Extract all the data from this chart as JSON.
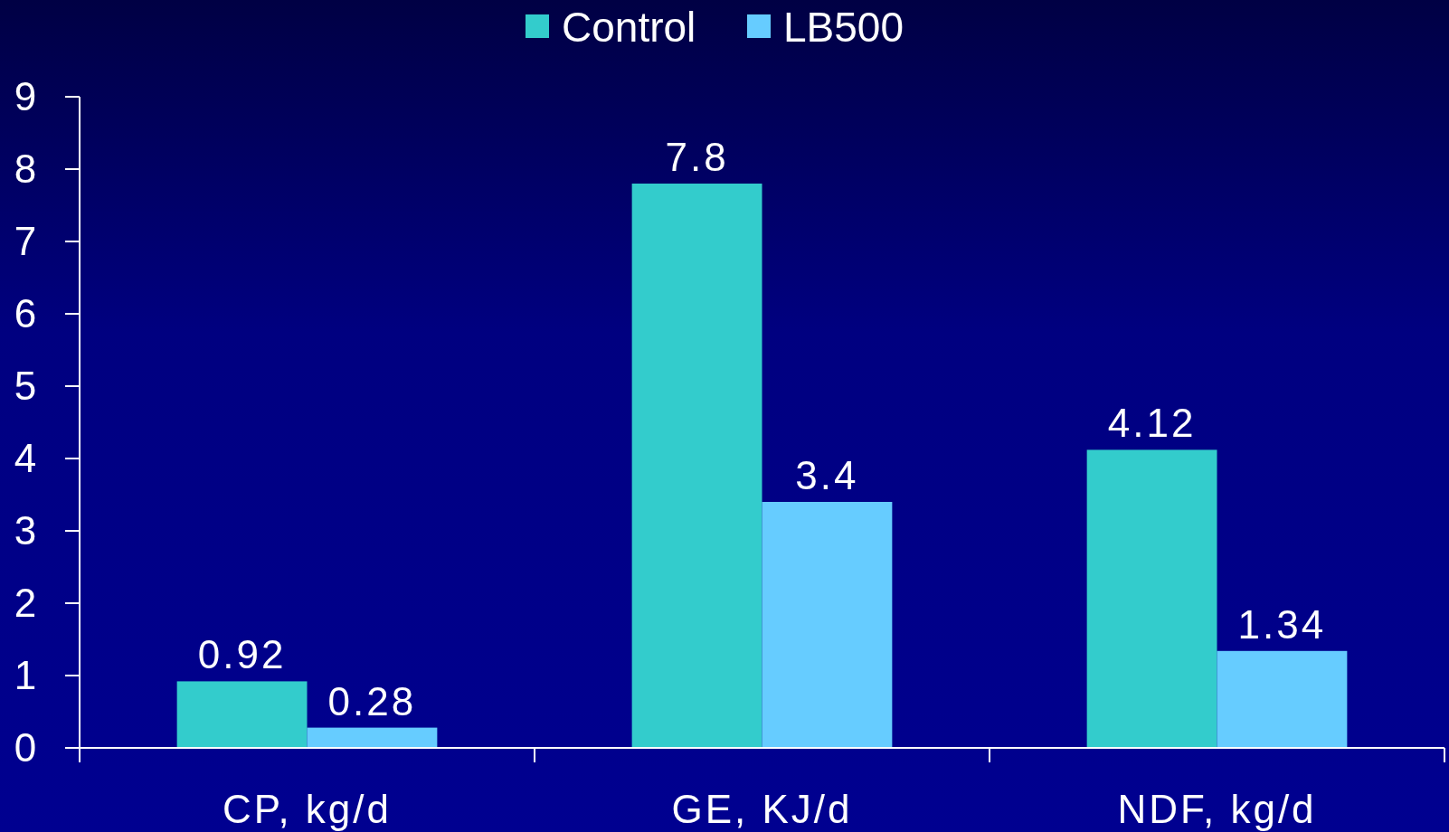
{
  "chart_data": {
    "type": "bar",
    "categories": [
      "CP, kg/d",
      "GE, KJ/d",
      "NDF, kg/d"
    ],
    "series": [
      {
        "name": "Control",
        "color": "#33cccc",
        "values": [
          0.92,
          7.8,
          4.12
        ]
      },
      {
        "name": "LB500",
        "color": "#66ccff",
        "values": [
          0.28,
          3.4,
          1.34
        ]
      }
    ],
    "ylim": [
      0,
      9
    ],
    "yticks": [
      0,
      1,
      2,
      3,
      4,
      5,
      6,
      7,
      8,
      9
    ],
    "grid": false,
    "legend": "top",
    "data_labels": true
  }
}
